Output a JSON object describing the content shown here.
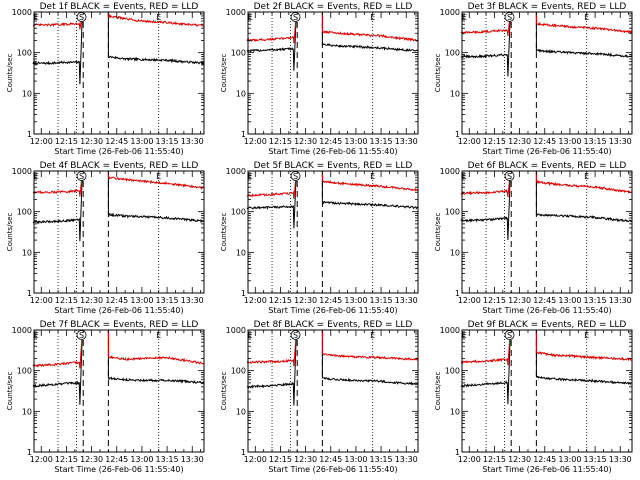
{
  "chart_data": {
    "type": "line",
    "x_units": "clock time (HH:MM)",
    "xticks": [
      "12:00",
      "12:15",
      "12:30",
      "12:45",
      "13:00",
      "13:15",
      "13:30"
    ],
    "yticks": [
      "1",
      "10",
      "100",
      "1000"
    ],
    "ylabel": "Counts/sec",
    "xlabel": "Start Time (26-Feb-06 11:55:40)",
    "yscale": "log",
    "ylim": [
      1,
      1000
    ],
    "xlim": [
      "11:55:40",
      "13:37:00"
    ],
    "colors": {
      "events": "#000000",
      "lld": "#e00000",
      "axes": "#000000"
    },
    "markers": {
      "dotted_lines": [
        "12:10",
        "12:21",
        "13:10"
      ],
      "dashed_lines": [
        "12:25",
        "12:40"
      ],
      "labels": [
        {
          "text": "E",
          "x": "11:57"
        },
        {
          "text": "S",
          "x": "12:24"
        },
        {
          "text": "E",
          "x": "13:10"
        }
      ]
    },
    "gap": [
      "12:26",
      "12:40"
    ],
    "panels": [
      {
        "title": "Det 1f BLACK = Events, RED = LLD",
        "series": [
          {
            "name": "Events",
            "color": "#000000",
            "pre": {
              "x": [
                "11:55",
                "12:05",
                "12:15",
                "12:23"
              ],
              "y": [
                55,
                55,
                58,
                58
              ]
            },
            "post": {
              "x": [
                "12:40",
                "12:50",
                "13:00",
                "13:15",
                "13:25",
                "13:37"
              ],
              "y": [
                80,
                70,
                68,
                65,
                60,
                55
              ]
            }
          },
          {
            "name": "LLD",
            "color": "#e00000",
            "pre": {
              "x": [
                "11:55",
                "12:05",
                "12:15",
                "12:23"
              ],
              "y": [
                480,
                480,
                500,
                520
              ]
            },
            "post": {
              "x": [
                "12:40",
                "12:50",
                "13:00",
                "13:15",
                "13:25",
                "13:37"
              ],
              "y": [
                800,
                680,
                600,
                550,
                500,
                460
              ]
            }
          }
        ]
      },
      {
        "title": "Det 2f BLACK = Events, RED = LLD",
        "series": [
          {
            "name": "Events",
            "color": "#000000",
            "pre": {
              "x": [
                "11:55",
                "12:05",
                "12:15",
                "12:23"
              ],
              "y": [
                110,
                115,
                120,
                125
              ]
            },
            "post": {
              "x": [
                "12:40",
                "12:50",
                "13:00",
                "13:15",
                "13:25",
                "13:37"
              ],
              "y": [
                160,
                145,
                140,
                130,
                120,
                110
              ]
            }
          },
          {
            "name": "LLD",
            "color": "#e00000",
            "pre": {
              "x": [
                "11:55",
                "12:05",
                "12:15",
                "12:23"
              ],
              "y": [
                200,
                210,
                220,
                240
              ]
            },
            "post": {
              "x": [
                "12:40",
                "12:50",
                "13:00",
                "13:15",
                "13:25",
                "13:37"
              ],
              "y": [
                330,
                300,
                280,
                260,
                230,
                200
              ]
            }
          }
        ]
      },
      {
        "title": "Det 3f BLACK = Events, RED = LLD",
        "series": [
          {
            "name": "Events",
            "color": "#000000",
            "pre": {
              "x": [
                "11:55",
                "12:05",
                "12:15",
                "12:23"
              ],
              "y": [
                80,
                80,
                85,
                90
              ]
            },
            "post": {
              "x": [
                "12:40",
                "12:50",
                "13:00",
                "13:15",
                "13:25",
                "13:37"
              ],
              "y": [
                115,
                105,
                100,
                95,
                88,
                80
              ]
            }
          },
          {
            "name": "LLD",
            "color": "#e00000",
            "pre": {
              "x": [
                "11:55",
                "12:05",
                "12:15",
                "12:23"
              ],
              "y": [
                310,
                320,
                340,
                360
              ]
            },
            "post": {
              "x": [
                "12:40",
                "12:50",
                "13:00",
                "13:15",
                "13:25",
                "13:37"
              ],
              "y": [
                520,
                470,
                430,
                400,
                360,
                320
              ]
            }
          }
        ]
      },
      {
        "title": "Det 4f BLACK = Events, RED = LLD",
        "series": [
          {
            "name": "Events",
            "color": "#000000",
            "pre": {
              "x": [
                "11:55",
                "12:05",
                "12:15",
                "12:23"
              ],
              "y": [
                55,
                57,
                60,
                65
              ]
            },
            "post": {
              "x": [
                "12:40",
                "12:50",
                "13:00",
                "13:15",
                "13:25",
                "13:37"
              ],
              "y": [
                85,
                78,
                75,
                70,
                65,
                58
              ]
            }
          },
          {
            "name": "LLD",
            "color": "#e00000",
            "pre": {
              "x": [
                "11:55",
                "12:05",
                "12:15",
                "12:23"
              ],
              "y": [
                300,
                300,
                310,
                330
              ]
            },
            "post": {
              "x": [
                "12:40",
                "12:50",
                "13:00",
                "13:15",
                "13:25",
                "13:37"
              ],
              "y": [
                700,
                620,
                560,
                500,
                440,
                380
              ]
            }
          }
        ]
      },
      {
        "title": "Det 5f BLACK = Events, RED = LLD",
        "series": [
          {
            "name": "Events",
            "color": "#000000",
            "pre": {
              "x": [
                "11:55",
                "12:05",
                "12:15",
                "12:23"
              ],
              "y": [
                125,
                125,
                130,
                135
              ]
            },
            "post": {
              "x": [
                "12:40",
                "12:50",
                "13:00",
                "13:15",
                "13:25",
                "13:37"
              ],
              "y": [
                170,
                160,
                155,
                145,
                135,
                125
              ]
            }
          },
          {
            "name": "LLD",
            "color": "#e00000",
            "pre": {
              "x": [
                "11:55",
                "12:05",
                "12:15",
                "12:23"
              ],
              "y": [
                250,
                260,
                270,
                290
              ]
            },
            "post": {
              "x": [
                "12:40",
                "12:50",
                "13:00",
                "13:15",
                "13:25",
                "13:37"
              ],
              "y": [
                560,
                500,
                460,
                420,
                380,
                340
              ]
            }
          }
        ]
      },
      {
        "title": "Det 6f BLACK = Events, RED = LLD",
        "series": [
          {
            "name": "Events",
            "color": "#000000",
            "pre": {
              "x": [
                "11:55",
                "12:05",
                "12:15",
                "12:23"
              ],
              "y": [
                60,
                62,
                65,
                70
              ]
            },
            "post": {
              "x": [
                "12:40",
                "12:50",
                "13:00",
                "13:15",
                "13:25",
                "13:37"
              ],
              "y": [
                85,
                80,
                78,
                72,
                65,
                58
              ]
            }
          },
          {
            "name": "LLD",
            "color": "#e00000",
            "pre": {
              "x": [
                "11:55",
                "12:05",
                "12:15",
                "12:23"
              ],
              "y": [
                280,
                290,
                300,
                320
              ]
            },
            "post": {
              "x": [
                "12:40",
                "12:50",
                "13:00",
                "13:15",
                "13:25",
                "13:37"
              ],
              "y": [
                540,
                480,
                440,
                400,
                350,
                300
              ]
            }
          }
        ]
      },
      {
        "title": "Det 7f BLACK = Events, RED = LLD",
        "series": [
          {
            "name": "Events",
            "color": "#000000",
            "pre": {
              "x": [
                "11:55",
                "12:05",
                "12:15",
                "12:23"
              ],
              "y": [
                42,
                45,
                48,
                50
              ]
            },
            "post": {
              "x": [
                "12:40",
                "12:50",
                "13:00",
                "13:15",
                "13:25",
                "13:37"
              ],
              "y": [
                65,
                60,
                58,
                58,
                55,
                50
              ]
            }
          },
          {
            "name": "LLD",
            "color": "#e00000",
            "pre": {
              "x": [
                "11:55",
                "12:05",
                "12:15",
                "12:23"
              ],
              "y": [
                130,
                140,
                150,
                160
              ]
            },
            "post": {
              "x": [
                "12:40",
                "12:50",
                "13:00",
                "13:15",
                "13:25",
                "13:37"
              ],
              "y": [
                220,
                190,
                200,
                210,
                180,
                150
              ]
            }
          }
        ]
      },
      {
        "title": "Det 8f BLACK = Events, RED = LLD",
        "series": [
          {
            "name": "Events",
            "color": "#000000",
            "pre": {
              "x": [
                "11:55",
                "12:05",
                "12:15",
                "12:23"
              ],
              "y": [
                40,
                42,
                45,
                48
              ]
            },
            "post": {
              "x": [
                "12:40",
                "12:50",
                "13:00",
                "13:15",
                "13:25",
                "13:37"
              ],
              "y": [
                65,
                60,
                58,
                55,
                50,
                48
              ]
            }
          },
          {
            "name": "LLD",
            "color": "#e00000",
            "pre": {
              "x": [
                "11:55",
                "12:05",
                "12:15",
                "12:23"
              ],
              "y": [
                160,
                165,
                170,
                180
              ]
            },
            "post": {
              "x": [
                "12:40",
                "12:50",
                "13:00",
                "13:15",
                "13:25",
                "13:37"
              ],
              "y": [
                260,
                230,
                220,
                210,
                200,
                190
              ]
            }
          }
        ]
      },
      {
        "title": "Det 9f BLACK = Events, RED = LLD",
        "series": [
          {
            "name": "Events",
            "color": "#000000",
            "pre": {
              "x": [
                "11:55",
                "12:05",
                "12:15",
                "12:23"
              ],
              "y": [
                42,
                45,
                48,
                52
              ]
            },
            "post": {
              "x": [
                "12:40",
                "12:50",
                "13:00",
                "13:15",
                "13:25",
                "13:37"
              ],
              "y": [
                70,
                62,
                60,
                56,
                52,
                48
              ]
            }
          },
          {
            "name": "LLD",
            "color": "#e00000",
            "pre": {
              "x": [
                "11:55",
                "12:05",
                "12:15",
                "12:23"
              ],
              "y": [
                160,
                170,
                180,
                190
              ]
            },
            "post": {
              "x": [
                "12:40",
                "12:50",
                "13:00",
                "13:15",
                "13:25",
                "13:37"
              ],
              "y": [
                280,
                240,
                230,
                210,
                200,
                190
              ]
            }
          }
        ]
      }
    ]
  }
}
